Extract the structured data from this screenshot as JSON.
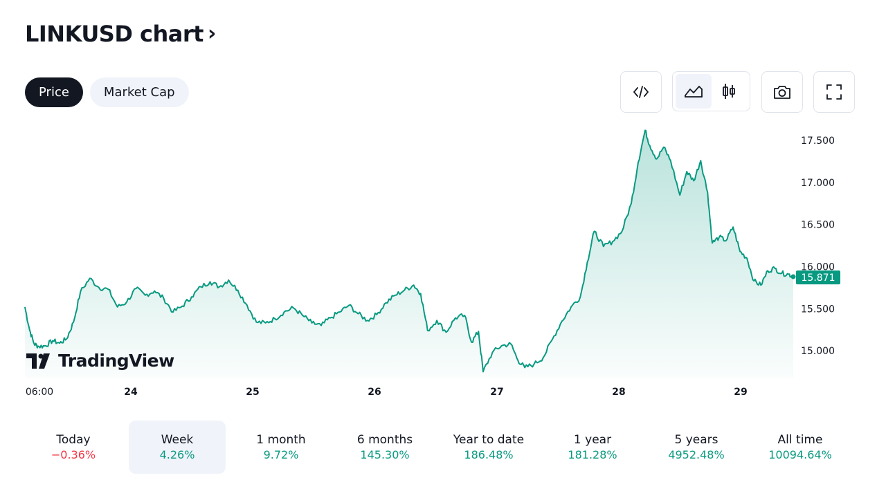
{
  "header": {
    "title": "LINKUSD chart",
    "chevron": "›"
  },
  "tabs": [
    {
      "label": "Price",
      "active": true
    },
    {
      "label": "Market Cap",
      "active": false
    }
  ],
  "toolbar": {
    "embed_icon": "code-icon",
    "area_icon": "area-chart-icon",
    "candle_icon": "candlestick-icon",
    "snapshot_icon": "camera-icon",
    "fullscreen_icon": "fullscreen-icon"
  },
  "logo": {
    "text": "TradingView"
  },
  "chart_data": {
    "type": "area",
    "symbol": "LINKUSD",
    "line_color": "#089981",
    "x_ticks": [
      "06:00",
      "24",
      "25",
      "26",
      "27",
      "28",
      "29"
    ],
    "y_ticks": [
      "17.500",
      "17.000",
      "16.500",
      "16.000",
      "15.500",
      "15.000"
    ],
    "y_tick_values": [
      17.5,
      17.0,
      16.5,
      16.0,
      15.5,
      15.0
    ],
    "ylim": [
      14.68,
      17.64
    ],
    "last_price": "15.871",
    "last_price_value": 15.871,
    "grid": false,
    "x_units": "days",
    "points": [
      [
        0.0,
        15.52
      ],
      [
        0.04,
        15.25
      ],
      [
        0.08,
        15.08
      ],
      [
        0.12,
        15.05
      ],
      [
        0.18,
        15.06
      ],
      [
        0.24,
        15.12
      ],
      [
        0.3,
        15.09
      ],
      [
        0.36,
        15.14
      ],
      [
        0.42,
        15.34
      ],
      [
        0.48,
        15.7
      ],
      [
        0.56,
        15.86
      ],
      [
        0.64,
        15.75
      ],
      [
        0.72,
        15.73
      ],
      [
        0.8,
        15.52
      ],
      [
        0.88,
        15.58
      ],
      [
        0.96,
        15.74
      ],
      [
        1.04,
        15.66
      ],
      [
        1.12,
        15.71
      ],
      [
        1.2,
        15.62
      ],
      [
        1.28,
        15.46
      ],
      [
        1.36,
        15.53
      ],
      [
        1.44,
        15.64
      ],
      [
        1.52,
        15.76
      ],
      [
        1.6,
        15.82
      ],
      [
        1.68,
        15.76
      ],
      [
        1.76,
        15.84
      ],
      [
        1.84,
        15.72
      ],
      [
        1.92,
        15.54
      ],
      [
        2.0,
        15.34
      ],
      [
        2.08,
        15.33
      ],
      [
        2.16,
        15.38
      ],
      [
        2.24,
        15.46
      ],
      [
        2.32,
        15.51
      ],
      [
        2.4,
        15.42
      ],
      [
        2.48,
        15.33
      ],
      [
        2.56,
        15.3
      ],
      [
        2.64,
        15.39
      ],
      [
        2.72,
        15.46
      ],
      [
        2.8,
        15.54
      ],
      [
        2.88,
        15.44
      ],
      [
        2.96,
        15.36
      ],
      [
        3.04,
        15.43
      ],
      [
        3.12,
        15.57
      ],
      [
        3.2,
        15.66
      ],
      [
        3.28,
        15.72
      ],
      [
        3.36,
        15.78
      ],
      [
        3.42,
        15.68
      ],
      [
        3.48,
        15.24
      ],
      [
        3.56,
        15.36
      ],
      [
        3.64,
        15.22
      ],
      [
        3.72,
        15.39
      ],
      [
        3.8,
        15.42
      ],
      [
        3.86,
        15.1
      ],
      [
        3.92,
        15.23
      ],
      [
        3.96,
        14.75
      ],
      [
        4.04,
        14.98
      ],
      [
        4.12,
        15.06
      ],
      [
        4.2,
        15.08
      ],
      [
        4.26,
        14.89
      ],
      [
        4.32,
        14.8
      ],
      [
        4.4,
        14.84
      ],
      [
        4.48,
        14.92
      ],
      [
        4.56,
        15.14
      ],
      [
        4.64,
        15.35
      ],
      [
        4.72,
        15.52
      ],
      [
        4.8,
        15.64
      ],
      [
        4.86,
        16.05
      ],
      [
        4.92,
        16.42
      ],
      [
        5.0,
        16.24
      ],
      [
        5.08,
        16.3
      ],
      [
        5.16,
        16.42
      ],
      [
        5.24,
        16.75
      ],
      [
        5.3,
        17.24
      ],
      [
        5.36,
        17.62
      ],
      [
        5.4,
        17.44
      ],
      [
        5.46,
        17.28
      ],
      [
        5.52,
        17.42
      ],
      [
        5.58,
        17.26
      ],
      [
        5.66,
        16.85
      ],
      [
        5.72,
        17.13
      ],
      [
        5.78,
        17.02
      ],
      [
        5.84,
        17.26
      ],
      [
        5.9,
        16.88
      ],
      [
        5.94,
        16.28
      ],
      [
        6.0,
        16.35
      ],
      [
        6.06,
        16.31
      ],
      [
        6.12,
        16.47
      ],
      [
        6.18,
        16.18
      ],
      [
        6.24,
        16.1
      ],
      [
        6.3,
        15.83
      ],
      [
        6.36,
        15.78
      ],
      [
        6.42,
        15.95
      ],
      [
        6.48,
        15.98
      ],
      [
        6.54,
        15.92
      ],
      [
        6.6,
        15.91
      ],
      [
        6.64,
        15.88
      ]
    ]
  },
  "periods": [
    {
      "label": "Today",
      "value": "−0.36%",
      "direction": "down",
      "active": false
    },
    {
      "label": "Week",
      "value": "4.26%",
      "direction": "up",
      "active": true
    },
    {
      "label": "1 month",
      "value": "9.72%",
      "direction": "up",
      "active": false
    },
    {
      "label": "6 months",
      "value": "145.30%",
      "direction": "up",
      "active": false
    },
    {
      "label": "Year to date",
      "value": "186.48%",
      "direction": "up",
      "active": false
    },
    {
      "label": "1 year",
      "value": "181.28%",
      "direction": "up",
      "active": false
    },
    {
      "label": "5 years",
      "value": "4952.48%",
      "direction": "up",
      "active": false
    },
    {
      "label": "All time",
      "value": "10094.64%",
      "direction": "up",
      "active": false
    }
  ]
}
